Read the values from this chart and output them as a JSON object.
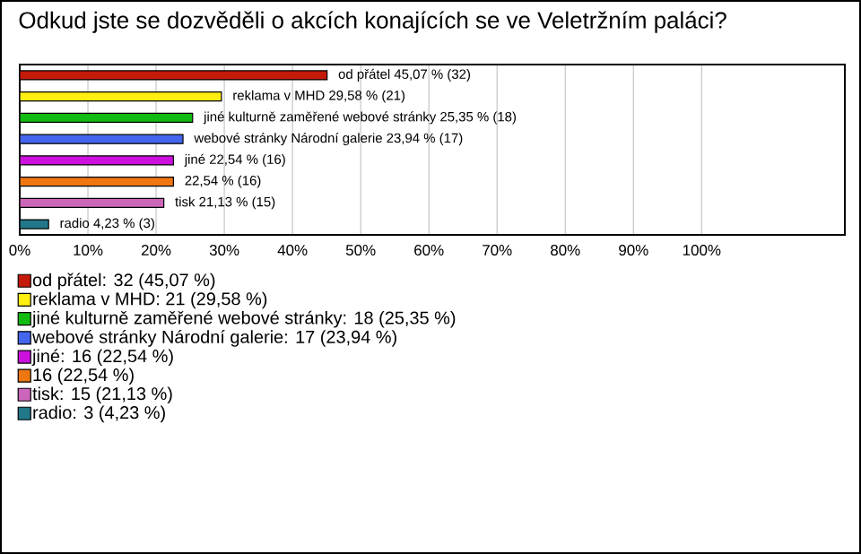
{
  "chart_data": {
    "type": "bar",
    "orientation": "horizontal",
    "title": "Odkud jste se dozvěděli o akcích konajících se ve Veletržním paláci?",
    "categories": [
      null,
      null,
      null,
      null,
      null,
      null,
      null,
      null
    ],
    "series": [
      {
        "name": "od přátel: 32 (45,07 %)",
        "color": "#c41a0a",
        "values": [
          45.07,
          null,
          null,
          null,
          null,
          null,
          null,
          null
        ],
        "value_labels": [
          "od přátel 45,07 % (32)",
          null,
          null,
          null,
          null,
          null,
          null,
          null
        ]
      },
      {
        "name": "reklama v MHD: 21 (29,58 %)",
        "color": "#ffee11",
        "values": [
          null,
          29.58,
          null,
          null,
          null,
          null,
          null,
          null
        ],
        "value_labels": [
          null,
          "reklama v MHD 29,58 % (21)",
          null,
          null,
          null,
          null,
          null,
          null
        ]
      },
      {
        "name": "jiné kulturně zaměřené webové stránky: 18 (25,35 %)",
        "color": "#11bb11",
        "values": [
          null,
          null,
          25.35,
          null,
          null,
          null,
          null,
          null
        ],
        "value_labels": [
          null,
          null,
          "jiné kulturně zaměřené webové stránky 25,35 % (18)",
          null,
          null,
          null,
          null,
          null
        ]
      },
      {
        "name": "webové stránky Národní galerie: 17 (23,94 %)",
        "color": "#4466ee",
        "values": [
          null,
          null,
          null,
          23.94,
          null,
          null,
          null,
          null
        ],
        "value_labels": [
          null,
          null,
          null,
          "webové stránky Národní galerie 23,94 % (17)",
          null,
          null,
          null,
          null
        ]
      },
      {
        "name": "jiné: 16 (22,54 %)",
        "color": "#cc11dd",
        "values": [
          null,
          null,
          null,
          null,
          22.54,
          null,
          null,
          null
        ],
        "value_labels": [
          null,
          null,
          null,
          null,
          "jiné 22,54 % (16)",
          null,
          null,
          null
        ]
      },
      {
        "name": "16 (22,54 %)",
        "color": "#ee7711",
        "values": [
          null,
          null,
          null,
          null,
          null,
          22.54,
          null,
          null
        ],
        "value_labels": [
          null,
          null,
          null,
          null,
          null,
          "22,54 % (16)",
          null,
          null
        ]
      },
      {
        "name": "tisk: 15 (21,13 %)",
        "color": "#cc66bb",
        "values": [
          null,
          null,
          null,
          null,
          null,
          null,
          21.13,
          null
        ],
        "value_labels": [
          null,
          null,
          null,
          null,
          null,
          null,
          "tisk 21,13 % (15)",
          null
        ]
      },
      {
        "name": "radio: 3 (4,23 %)",
        "color": "#227788",
        "values": [
          null,
          null,
          null,
          null,
          null,
          null,
          null,
          4.23
        ],
        "value_labels": [
          null,
          null,
          null,
          null,
          null,
          null,
          null,
          "radio 4,23 % (3)"
        ]
      }
    ],
    "xlim": [
      0,
      121
    ],
    "xticks": [
      {
        "value": 0,
        "label": "0%"
      },
      {
        "value": 10,
        "label": "10%"
      },
      {
        "value": 20,
        "label": "20%"
      },
      {
        "value": 30,
        "label": "30%"
      },
      {
        "value": 40,
        "label": "40%"
      },
      {
        "value": 50,
        "label": "50%"
      },
      {
        "value": 60,
        "label": "60%"
      },
      {
        "value": 70,
        "label": "70%"
      },
      {
        "value": 80,
        "label": "80%"
      },
      {
        "value": 90,
        "label": "90%"
      },
      {
        "value": 100,
        "label": "100%"
      }
    ],
    "grid": "x",
    "legend": "bottom"
  }
}
